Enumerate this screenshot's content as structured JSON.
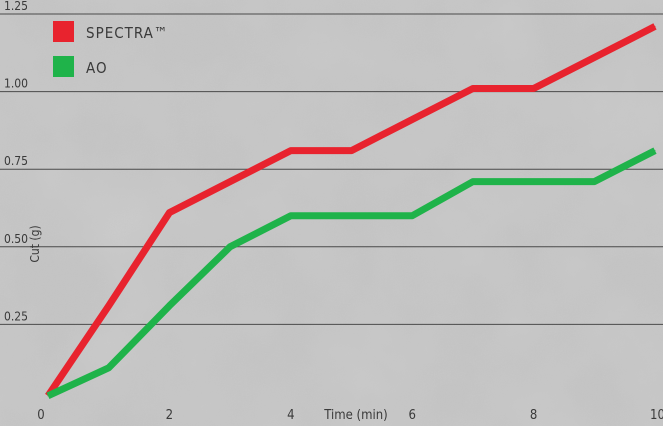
{
  "chart_data": {
    "type": "line",
    "title": "",
    "xlabel": "Time (min)",
    "ylabel": "Cut (g)",
    "x": [
      0,
      1,
      2,
      3,
      4,
      5,
      6,
      7,
      8,
      9,
      10
    ],
    "xlim": [
      0,
      10
    ],
    "ylim": [
      0,
      1.25
    ],
    "x_ticks": [
      0,
      2,
      4,
      6,
      8,
      10
    ],
    "x_tick_labels": [
      "0",
      "2",
      "4",
      "6",
      "8",
      "10"
    ],
    "y_ticks": [
      0.25,
      0.5,
      0.75,
      1.0,
      1.25
    ],
    "y_tick_labels": [
      "0.25",
      "0.50",
      "0.75",
      "1.00",
      "1.25"
    ],
    "grid": "horizontal",
    "legend_position": "top-left",
    "series": [
      {
        "name": "SPECTRA™",
        "color": "#e8232e",
        "values": [
          0.02,
          0.31,
          0.61,
          0.71,
          0.81,
          0.81,
          0.91,
          1.01,
          1.01,
          1.11,
          1.21
        ]
      },
      {
        "name": "AO",
        "color": "#1fb34a",
        "values": [
          0.02,
          0.11,
          0.31,
          0.5,
          0.6,
          0.6,
          0.6,
          0.71,
          0.71,
          0.71,
          0.81
        ]
      }
    ]
  }
}
